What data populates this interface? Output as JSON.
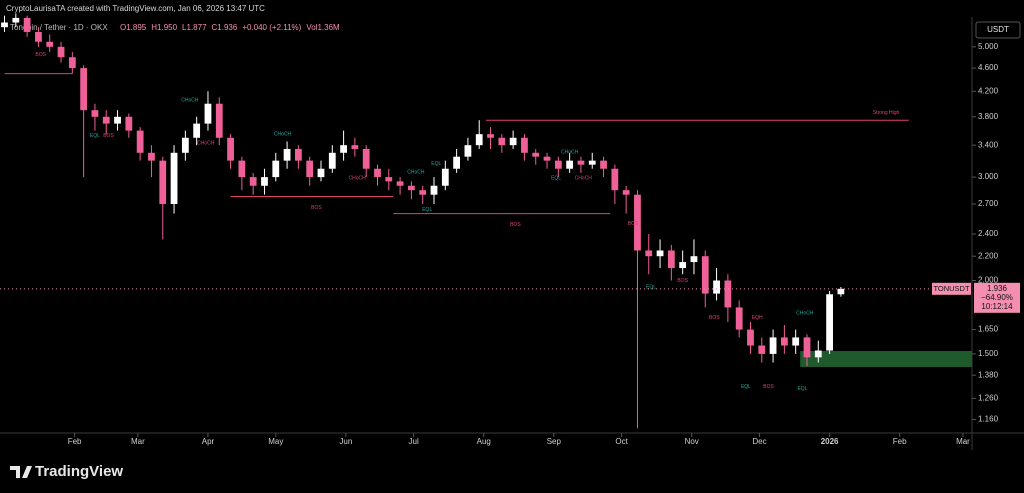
{
  "chart_data": {
    "type": "candlestick",
    "header": "CryptoLaurisaTA created with TradingView.com, Jan 06, 2026 13:47 UTC",
    "legend": {
      "symbol": "Toncoin / Tether · 1D · OKX",
      "values": [
        "O1.895",
        "H1.950",
        "L1.877",
        "C1.936",
        "+0.040 (+2.11%)",
        "Vol1.36M"
      ]
    },
    "currency": "USDT",
    "branding": "TradingView",
    "log_scale": true,
    "up_color": "#ffffff",
    "down_color": "#ef5f98",
    "xlim": [
      -2,
      428
    ],
    "ylim": [
      1.1,
      5.62
    ],
    "xticks": [
      {
        "value": 31,
        "label": "Feb"
      },
      {
        "value": 59,
        "label": "Mar"
      },
      {
        "value": 90,
        "label": "Apr"
      },
      {
        "value": 120,
        "label": "May"
      },
      {
        "value": 151,
        "label": "Jun"
      },
      {
        "value": 181,
        "label": "Jul"
      },
      {
        "value": 212,
        "label": "Aug"
      },
      {
        "value": 243,
        "label": "Sep"
      },
      {
        "value": 273,
        "label": "Oct"
      },
      {
        "value": 304,
        "label": "Nov"
      },
      {
        "value": 334,
        "label": "Dec"
      },
      {
        "value": 365,
        "label": "2026"
      },
      {
        "value": 396,
        "label": "Feb"
      },
      {
        "value": 424,
        "label": "Mar"
      }
    ],
    "yticks": [
      {
        "value": 5,
        "label": "5.000"
      },
      {
        "value": 4.6,
        "label": "4.600"
      },
      {
        "value": 4.2,
        "label": "4.200"
      },
      {
        "value": 3.8,
        "label": "3.800"
      },
      {
        "value": 3.4,
        "label": "3.400"
      },
      {
        "value": 3,
        "label": "3.000"
      },
      {
        "value": 2.7,
        "label": "2.700"
      },
      {
        "value": 2.4,
        "label": "2.400"
      },
      {
        "value": 2.2,
        "label": "2.200"
      },
      {
        "value": 2,
        "label": "2.000"
      },
      {
        "value": 1.65,
        "label": "1.650"
      },
      {
        "value": 1.5,
        "label": "1.500"
      },
      {
        "value": 1.38,
        "label": "1.380"
      },
      {
        "value": 1.26,
        "label": "1.260"
      },
      {
        "value": 1.16,
        "label": "1.160"
      }
    ],
    "x": [
      0,
      5,
      10,
      15,
      20,
      25,
      30,
      35,
      40,
      45,
      50,
      55,
      60,
      65,
      70,
      75,
      80,
      85,
      90,
      95,
      100,
      105,
      110,
      115,
      120,
      125,
      130,
      135,
      140,
      145,
      150,
      155,
      160,
      165,
      170,
      175,
      180,
      185,
      190,
      195,
      200,
      205,
      210,
      215,
      220,
      225,
      230,
      235,
      240,
      245,
      250,
      255,
      260,
      265,
      270,
      275,
      280,
      285,
      290,
      295,
      300,
      305,
      310,
      315,
      320,
      325,
      330,
      335,
      340,
      345,
      350,
      355,
      360,
      365,
      370
    ],
    "open": [
      5.4,
      5.5,
      5.6,
      5.3,
      5.1,
      5.0,
      4.8,
      4.6,
      3.9,
      3.8,
      3.7,
      3.8,
      3.6,
      3.3,
      3.2,
      2.7,
      3.3,
      3.5,
      3.7,
      4.0,
      3.5,
      3.2,
      3.0,
      2.9,
      3.0,
      3.2,
      3.35,
      3.2,
      3.0,
      3.1,
      3.3,
      3.4,
      3.35,
      3.1,
      3.0,
      2.95,
      2.9,
      2.85,
      2.8,
      2.9,
      3.1,
      3.25,
      3.4,
      3.55,
      3.5,
      3.4,
      3.5,
      3.3,
      3.25,
      3.2,
      3.1,
      3.2,
      3.15,
      3.2,
      3.1,
      2.85,
      2.8,
      2.25,
      2.2,
      2.25,
      2.1,
      2.15,
      2.2,
      1.9,
      2.0,
      1.8,
      1.65,
      1.55,
      1.5,
      1.6,
      1.55,
      1.6,
      1.48,
      1.52,
      1.895
    ],
    "high": [
      5.65,
      5.7,
      5.65,
      5.4,
      5.25,
      5.1,
      4.9,
      4.65,
      4.0,
      3.9,
      3.9,
      3.85,
      3.65,
      3.4,
      3.25,
      3.4,
      3.6,
      3.8,
      4.2,
      4.1,
      3.55,
      3.25,
      3.05,
      3.1,
      3.3,
      3.45,
      3.4,
      3.25,
      3.2,
      3.4,
      3.6,
      3.5,
      3.4,
      3.15,
      3.1,
      3.0,
      2.95,
      2.9,
      3.0,
      3.2,
      3.35,
      3.5,
      3.75,
      3.65,
      3.55,
      3.6,
      3.55,
      3.35,
      3.3,
      3.25,
      3.3,
      3.25,
      3.3,
      3.25,
      3.15,
      2.9,
      2.85,
      2.4,
      2.35,
      2.3,
      2.25,
      2.35,
      2.25,
      2.1,
      2.05,
      1.85,
      1.7,
      1.6,
      1.65,
      1.68,
      1.65,
      1.62,
      1.58,
      1.92,
      1.95
    ],
    "low": [
      5.3,
      5.4,
      5.2,
      5.0,
      4.9,
      4.7,
      4.5,
      3.0,
      3.6,
      3.55,
      3.6,
      3.5,
      3.2,
      3.0,
      2.35,
      2.6,
      3.2,
      3.4,
      3.6,
      3.4,
      3.1,
      2.85,
      2.8,
      2.8,
      2.95,
      3.1,
      3.1,
      2.9,
      2.95,
      3.05,
      3.2,
      3.25,
      3.0,
      2.9,
      2.85,
      2.8,
      2.75,
      2.7,
      2.7,
      2.85,
      3.05,
      3.2,
      3.35,
      3.35,
      3.3,
      3.35,
      3.2,
      3.15,
      3.1,
      3.0,
      3.05,
      3.05,
      3.1,
      3.0,
      2.7,
      2.6,
      1.12,
      2.05,
      2.1,
      2.0,
      2.05,
      2.05,
      1.8,
      1.85,
      1.7,
      1.6,
      1.5,
      1.45,
      1.45,
      1.5,
      1.5,
      1.43,
      1.45,
      1.5,
      1.877
    ],
    "close": [
      5.5,
      5.6,
      5.3,
      5.1,
      5.0,
      4.8,
      4.6,
      3.9,
      3.8,
      3.7,
      3.8,
      3.6,
      3.3,
      3.2,
      2.7,
      3.3,
      3.5,
      3.7,
      4.0,
      3.5,
      3.2,
      3.0,
      2.9,
      3.0,
      3.2,
      3.35,
      3.2,
      3.0,
      3.1,
      3.3,
      3.4,
      3.35,
      3.1,
      3.0,
      2.95,
      2.9,
      2.85,
      2.8,
      2.9,
      3.1,
      3.25,
      3.4,
      3.55,
      3.5,
      3.4,
      3.5,
      3.3,
      3.25,
      3.2,
      3.1,
      3.2,
      3.15,
      3.2,
      3.1,
      2.85,
      2.8,
      2.25,
      2.2,
      2.25,
      2.1,
      2.15,
      2.2,
      1.9,
      2.0,
      1.8,
      1.65,
      1.55,
      1.5,
      1.6,
      1.55,
      1.6,
      1.48,
      1.52,
      1.895,
      1.936
    ],
    "levels": [
      {
        "x": [
          0,
          30
        ],
        "price": 4.5,
        "color": "#e0406f"
      },
      {
        "x": [
          100,
          172
        ],
        "price": 2.78,
        "color": "#e0406f"
      },
      {
        "x": [
          172,
          268
        ],
        "price": 2.6,
        "color": "#e0406f"
      },
      {
        "x": [
          213,
          400
        ],
        "price": 3.75,
        "color": "#e0406f"
      }
    ],
    "zone": {
      "x": [
        352,
        428
      ],
      "price": [
        1.425,
        1.517
      ],
      "color": "#1f5a2c"
    },
    "annotations": [
      {
        "text": "BOS",
        "x": 16,
        "price": 4.85,
        "color": "#e0406f"
      },
      {
        "text": "EQL",
        "x": 40,
        "price": 3.53,
        "color": "#26a69a"
      },
      {
        "text": "BOS",
        "x": 46,
        "price": 3.53,
        "color": "#e0406f"
      },
      {
        "text": "CHoCH",
        "x": 82,
        "price": 4.06,
        "color": "#26a69a"
      },
      {
        "text": "CHoCH",
        "x": 89,
        "price": 3.43,
        "color": "#e0406f"
      },
      {
        "text": "CHoCH",
        "x": 123,
        "price": 3.55,
        "color": "#26a69a"
      },
      {
        "text": "BOS",
        "x": 138,
        "price": 2.66,
        "color": "#e0406f"
      },
      {
        "text": "CHoCH",
        "x": 156,
        "price": 2.99,
        "color": "#e0406f"
      },
      {
        "text": "CHoCH",
        "x": 182,
        "price": 3.06,
        "color": "#26a69a"
      },
      {
        "text": "EQL",
        "x": 187,
        "price": 2.64,
        "color": "#26a69a"
      },
      {
        "text": "EQL",
        "x": 191,
        "price": 3.16,
        "color": "#26a69a"
      },
      {
        "text": "BOS",
        "x": 226,
        "price": 2.49,
        "color": "#e0406f"
      },
      {
        "text": "EQL",
        "x": 244,
        "price": 2.99,
        "color": "#26a69a"
      },
      {
        "text": "CHoCH",
        "x": 250,
        "price": 3.31,
        "color": "#26a69a"
      },
      {
        "text": "CHoCH",
        "x": 256,
        "price": 2.99,
        "color": "#e0406f"
      },
      {
        "text": "BOS",
        "x": 278,
        "price": 2.5,
        "color": "#e0406f"
      },
      {
        "text": "EQL",
        "x": 286,
        "price": 1.95,
        "color": "#26a69a"
      },
      {
        "text": "BOS",
        "x": 300,
        "price": 2.0,
        "color": "#e0406f"
      },
      {
        "text": "BOS",
        "x": 314,
        "price": 1.73,
        "color": "#e0406f"
      },
      {
        "text": "EQL",
        "x": 328,
        "price": 1.32,
        "color": "#26a69a"
      },
      {
        "text": "EQH",
        "x": 333,
        "price": 1.73,
        "color": "#e0406f"
      },
      {
        "text": "BOS",
        "x": 338,
        "price": 1.32,
        "color": "#e0406f"
      },
      {
        "text": "EQL",
        "x": 353,
        "price": 1.31,
        "color": "#26a69a"
      },
      {
        "text": "CHoCH",
        "x": 354,
        "price": 1.76,
        "color": "#26a69a"
      },
      {
        "text": "Strong High",
        "x": 390,
        "price": 3.86,
        "color": "#e0406f"
      }
    ],
    "last_price": {
      "symbol": "TONUSDT",
      "price": 1.936,
      "change": "−64.90%",
      "countdown": "10:12:14",
      "color": "#f48fb1"
    }
  }
}
